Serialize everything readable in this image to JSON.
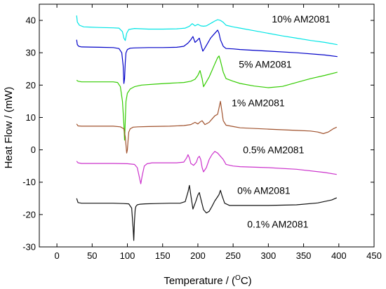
{
  "chart_data": {
    "type": "line",
    "title": "",
    "xlabel": "Temperature / (°C)",
    "xlabel_parts": {
      "before": "Temperature / (",
      "sup": "O",
      "after": "C)"
    },
    "ylabel": "Heat Flow / (mW)",
    "xlim": [
      -25,
      450
    ],
    "ylim": [
      -30,
      45
    ],
    "xticks": [
      0,
      50,
      100,
      150,
      200,
      250,
      300,
      350,
      400,
      450
    ],
    "yticks": [
      -30,
      -20,
      -10,
      0,
      10,
      20,
      30,
      40
    ],
    "grid": false,
    "legend": "none",
    "labels": [
      {
        "text": "10% AM2081",
        "x": 305,
        "y": 40.5
      },
      {
        "text": "5% AM2081",
        "x": 258,
        "y": 26.5
      },
      {
        "text": "1% AM2081",
        "x": 248,
        "y": 14.5
      },
      {
        "text": "0.5% AM2081",
        "x": 264,
        "y": 0
      },
      {
        "text": "0% AM2081",
        "x": 256,
        "y": -12.5
      },
      {
        "text": "0.1% AM2081",
        "x": 270,
        "y": -23
      }
    ],
    "series": [
      {
        "color": "#00e5e5",
        "x": [
          28,
          29,
          32,
          38,
          60,
          80,
          88,
          93,
          95,
          97,
          99,
          102,
          110,
          130,
          150,
          170,
          182,
          188,
          192,
          196,
          200,
          204,
          208,
          212,
          216,
          220,
          224,
          228,
          232,
          236,
          240,
          250,
          260,
          280,
          300,
          320,
          340,
          360,
          380,
          398
        ],
        "y": [
          41.5,
          39.5,
          38.5,
          38,
          37.8,
          37.7,
          37.6,
          36.5,
          34.5,
          33.8,
          36,
          37.2,
          37.5,
          37.3,
          37.3,
          37.4,
          37.6,
          38.2,
          39,
          38.3,
          38.8,
          38.3,
          38.2,
          38.3,
          38.8,
          39.3,
          39.8,
          40.2,
          40,
          39.4,
          38.5,
          38,
          37.6,
          36.8,
          36,
          35.2,
          34.5,
          33.8,
          33.2,
          32.5
        ]
      },
      {
        "color": "#0000c8",
        "x": [
          28,
          29,
          31,
          35,
          60,
          80,
          88,
          92,
          94,
          95,
          96,
          97,
          98,
          100,
          104,
          110,
          130,
          150,
          170,
          180,
          186,
          190,
          193,
          196,
          199,
          202,
          205,
          207,
          210,
          214,
          218,
          222,
          226,
          228,
          230,
          232,
          236,
          240,
          250,
          260,
          300,
          340,
          380,
          398
        ],
        "y": [
          34,
          32.5,
          32,
          31.8,
          31.7,
          31.6,
          31.3,
          30,
          26,
          20.5,
          22,
          27,
          30,
          31,
          31.4,
          31.5,
          31.6,
          31.6,
          31.7,
          32,
          33,
          34,
          35,
          33.2,
          33.8,
          34.5,
          32,
          30.5,
          31.5,
          33,
          34.5,
          35.5,
          36.5,
          37,
          36,
          34,
          32,
          31.3,
          31.2,
          31,
          30.5,
          30,
          29.3,
          28.8
        ]
      },
      {
        "color": "#33cc00",
        "x": [
          28,
          30,
          35,
          60,
          80,
          86,
          90,
          93,
          95,
          96,
          97,
          98,
          100,
          104,
          110,
          120,
          140,
          160,
          180,
          190,
          196,
          200,
          203,
          206,
          208,
          212,
          216,
          220,
          224,
          228,
          230,
          232,
          236,
          240,
          250,
          260,
          280,
          300,
          320,
          340,
          360,
          380,
          398
        ],
        "y": [
          21.5,
          21.2,
          21,
          21,
          21,
          20.8,
          19.5,
          15,
          8,
          3,
          9,
          15,
          17.5,
          18.8,
          19.5,
          20,
          20.3,
          20.6,
          20.8,
          21.2,
          21.8,
          23,
          24.5,
          22,
          19.5,
          21,
          22.5,
          24.5,
          26.5,
          28.5,
          29,
          27.5,
          24,
          22,
          21.2,
          20.5,
          19.7,
          19.2,
          19.6,
          20.8,
          22,
          23,
          24
        ]
      },
      {
        "color": "#a0522d",
        "x": [
          28,
          30,
          35,
          60,
          80,
          90,
          95,
          97,
          99,
          100,
          101,
          102,
          104,
          108,
          115,
          130,
          160,
          180,
          190,
          196,
          200,
          203,
          206,
          210,
          216,
          220,
          224,
          228,
          230,
          232,
          234,
          236,
          240,
          250,
          260,
          300,
          340,
          360,
          370,
          378,
          385,
          392,
          397
        ],
        "y": [
          8,
          7.4,
          7.3,
          7.3,
          7.3,
          7.1,
          6.5,
          4,
          -1,
          0,
          3,
          5.5,
          6.5,
          7,
          7.1,
          7.2,
          7.3,
          7.5,
          7.8,
          8.5,
          8,
          8.6,
          9,
          7.8,
          8.5,
          9.5,
          10.5,
          11,
          13,
          15,
          12,
          9,
          7.6,
          7.2,
          6.8,
          6.4,
          6,
          5.8,
          5.5,
          5,
          5.5,
          6.5,
          7
        ]
      },
      {
        "color": "#cc33cc",
        "x": [
          28,
          30,
          35,
          60,
          80,
          100,
          110,
          114,
          117,
          119,
          121,
          124,
          128,
          135,
          150,
          170,
          180,
          184,
          186,
          188,
          190,
          194,
          198,
          200,
          202,
          204,
          206,
          208,
          212,
          216,
          220,
          224,
          228,
          232,
          236,
          240,
          250,
          260,
          300,
          340,
          380,
          397
        ],
        "y": [
          -3.5,
          -4,
          -4.2,
          -4.2,
          -4.2,
          -4.3,
          -4.5,
          -5.5,
          -8.5,
          -10.5,
          -8,
          -5,
          -4.3,
          -4,
          -4,
          -4,
          -3.8,
          -2.5,
          -1.5,
          -2.5,
          -4.2,
          -4.8,
          -3.8,
          -2.5,
          -2,
          -3,
          -5.5,
          -6.8,
          -5.5,
          -3,
          -1.5,
          -0.5,
          -1,
          -2,
          -3,
          -4.5,
          -5,
          -5.2,
          -5.5,
          -6,
          -7,
          -7.6
        ]
      },
      {
        "color": "#111111",
        "x": [
          28,
          30,
          35,
          60,
          80,
          95,
          102,
          106,
          108,
          109,
          110,
          111,
          112,
          114,
          118,
          125,
          140,
          160,
          175,
          182,
          186,
          188,
          190,
          193,
          197,
          200,
          202,
          204,
          208,
          212,
          216,
          220,
          224,
          228,
          230,
          232,
          234,
          238,
          245,
          260,
          300,
          340,
          370,
          390,
          397
        ],
        "y": [
          -15,
          -16.3,
          -16.5,
          -16.5,
          -16.5,
          -16.6,
          -16.7,
          -18,
          -24,
          -28,
          -22,
          -18.5,
          -17.5,
          -17,
          -16.8,
          -16.7,
          -16.6,
          -16.5,
          -16.5,
          -16,
          -13,
          -11,
          -14,
          -18.3,
          -16,
          -14,
          -13.2,
          -15,
          -18.5,
          -19.5,
          -19,
          -17.5,
          -15.8,
          -14.5,
          -13.8,
          -12.5,
          -14,
          -16.5,
          -17.2,
          -17.2,
          -17.2,
          -17,
          -16.4,
          -15.5,
          -14.8
        ]
      }
    ]
  }
}
